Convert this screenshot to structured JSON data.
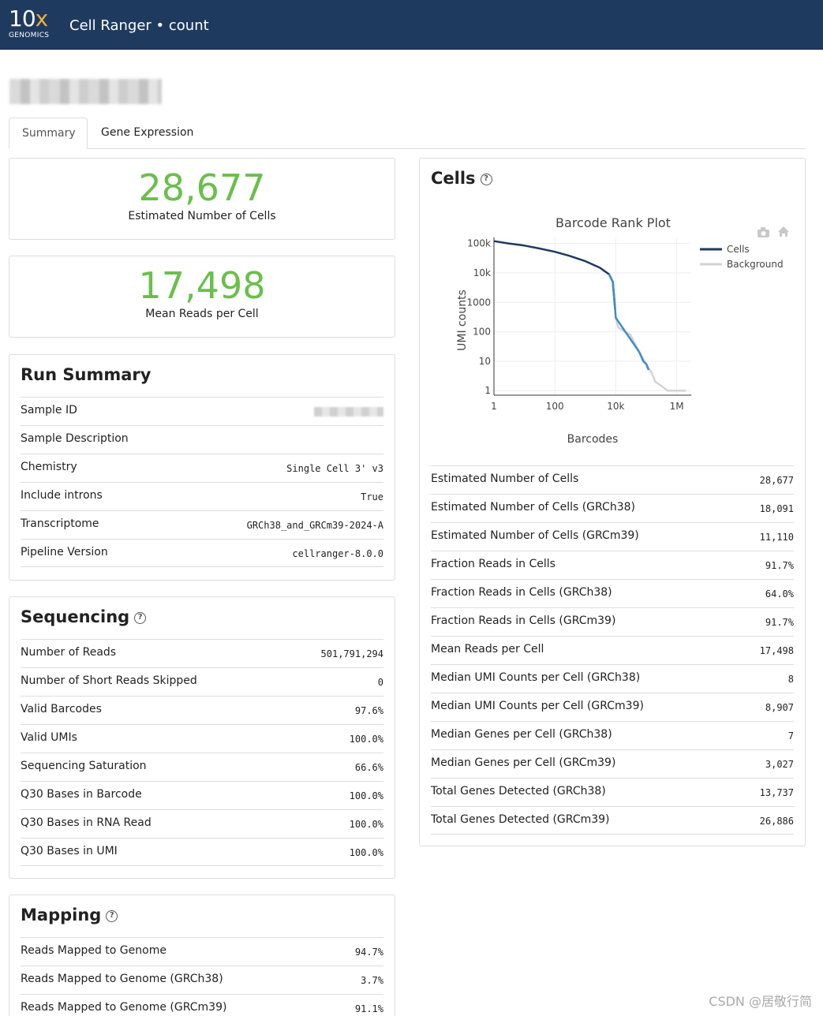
{
  "header": {
    "logo_big": "10",
    "logo_x": "x",
    "logo_small": "GENOMICS",
    "app_title": "Cell Ranger • count"
  },
  "tabs": [
    {
      "label": "Summary",
      "active": true
    },
    {
      "label": "Gene Expression",
      "active": false
    }
  ],
  "hero": [
    {
      "value": "28,677",
      "label": "Estimated Number of Cells"
    },
    {
      "value": "17,498",
      "label": "Mean Reads per Cell"
    }
  ],
  "run_summary": {
    "title": "Run Summary",
    "rows": [
      {
        "label": "Sample ID",
        "value": ""
      },
      {
        "label": "Sample Description",
        "value": ""
      },
      {
        "label": "Chemistry",
        "value": "Single Cell 3' v3"
      },
      {
        "label": "Include introns",
        "value": "True"
      },
      {
        "label": "Transcriptome",
        "value": "GRCh38_and_GRCm39-2024-A"
      },
      {
        "label": "Pipeline Version",
        "value": "cellranger-8.0.0"
      }
    ]
  },
  "sequencing": {
    "title": "Sequencing",
    "rows": [
      {
        "label": "Number of Reads",
        "value": "501,791,294"
      },
      {
        "label": "Number of Short Reads Skipped",
        "value": "0"
      },
      {
        "label": "Valid Barcodes",
        "value": "97.6%"
      },
      {
        "label": "Valid UMIs",
        "value": "100.0%"
      },
      {
        "label": "Sequencing Saturation",
        "value": "66.6%"
      },
      {
        "label": "Q30 Bases in Barcode",
        "value": "100.0%"
      },
      {
        "label": "Q30 Bases in RNA Read",
        "value": "100.0%"
      },
      {
        "label": "Q30 Bases in UMI",
        "value": "100.0%"
      }
    ]
  },
  "mapping": {
    "title": "Mapping",
    "rows": [
      {
        "label": "Reads Mapped to Genome",
        "value": "94.7%"
      },
      {
        "label": "Reads Mapped to Genome (GRCh38)",
        "value": "3.7%"
      },
      {
        "label": "Reads Mapped to Genome (GRCm39)",
        "value": "91.1%"
      }
    ]
  },
  "cells": {
    "title": "Cells",
    "rows": [
      {
        "label": "Estimated Number of Cells",
        "value": "28,677"
      },
      {
        "label": "Estimated Number of Cells (GRCh38)",
        "value": "18,091"
      },
      {
        "label": "Estimated Number of Cells (GRCm39)",
        "value": "11,110"
      },
      {
        "label": "Fraction Reads in Cells",
        "value": "91.7%"
      },
      {
        "label": "Fraction Reads in Cells (GRCh38)",
        "value": "64.0%"
      },
      {
        "label": "Fraction Reads in Cells (GRCm39)",
        "value": "91.7%"
      },
      {
        "label": "Mean Reads per Cell",
        "value": "17,498"
      },
      {
        "label": "Median UMI Counts per Cell (GRCh38)",
        "value": "8"
      },
      {
        "label": "Median UMI Counts per Cell (GRCm39)",
        "value": "8,907"
      },
      {
        "label": "Median Genes per Cell (GRCh38)",
        "value": "7"
      },
      {
        "label": "Median Genes per Cell (GRCm39)",
        "value": "3,027"
      },
      {
        "label": "Total Genes Detected (GRCh38)",
        "value": "13,737"
      },
      {
        "label": "Total Genes Detected (GRCm39)",
        "value": "26,886"
      }
    ]
  },
  "chart_data": {
    "type": "line",
    "title": "Barcode Rank Plot",
    "xlabel": "Barcodes",
    "ylabel": "UMI counts",
    "x_scale": "log",
    "y_scale": "log",
    "xlim": [
      1,
      3000000
    ],
    "ylim": [
      0.7,
      160000
    ],
    "x_ticks": [
      {
        "v": 1,
        "label": "1"
      },
      {
        "v": 100,
        "label": "100"
      },
      {
        "v": 10000,
        "label": "10k"
      },
      {
        "v": 1000000,
        "label": "1M"
      }
    ],
    "y_ticks": [
      {
        "v": 1,
        "label": "1"
      },
      {
        "v": 10,
        "label": "10"
      },
      {
        "v": 100,
        "label": "100"
      },
      {
        "v": 1000,
        "label": "1000"
      },
      {
        "v": 10000,
        "label": "10k"
      },
      {
        "v": 100000,
        "label": "100k"
      }
    ],
    "grid": true,
    "legend_position": "right",
    "series": [
      {
        "name": "Cells",
        "color": "#1f3a5f",
        "x": [
          1,
          3,
          10,
          30,
          100,
          300,
          1000,
          3000,
          6000,
          8000,
          9500
        ],
        "y": [
          120000,
          100000,
          85000,
          68000,
          52000,
          38000,
          25000,
          15000,
          9000,
          5000,
          600
        ]
      },
      {
        "name": "Background",
        "color": "#d3d3d3",
        "x": [
          10000,
          12000,
          20000,
          30000,
          60000,
          100000,
          150000,
          200000,
          300000,
          500000,
          1000000,
          2000000
        ],
        "y": [
          300,
          140,
          100,
          80,
          20,
          8,
          4,
          2,
          1.5,
          1,
          1,
          1
        ]
      },
      {
        "name": "",
        "color": "#3f8cc6",
        "x": [
          6000,
          8000,
          9500,
          10000,
          60000,
          80000,
          100000,
          120000
        ],
        "y": [
          9000,
          5000,
          600,
          300,
          20,
          10,
          8,
          5
        ]
      }
    ]
  },
  "watermark": "CSDN @居敬行简"
}
